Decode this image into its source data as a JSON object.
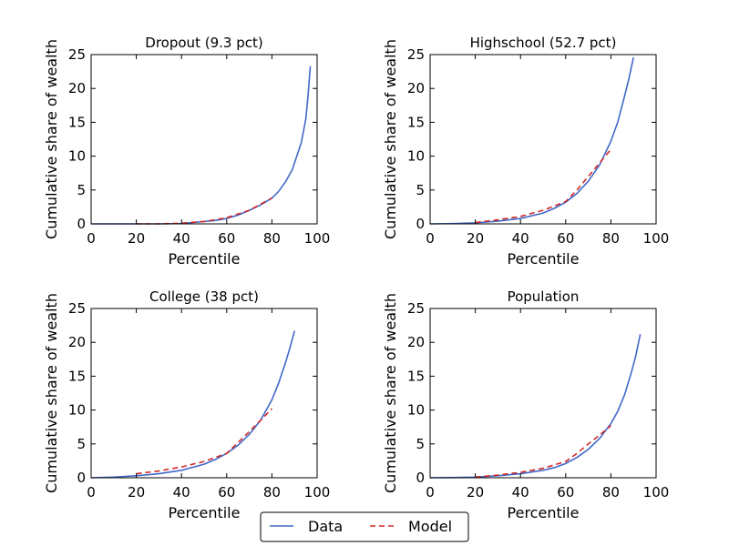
{
  "chart_data": [
    {
      "type": "line",
      "title": "Dropout (9.3 pct)",
      "xlabel": "Percentile",
      "ylabel": "Cumulative share of wealth",
      "xlim": [
        0,
        100
      ],
      "ylim": [
        0,
        25
      ],
      "xticks": [
        "0",
        "20",
        "40",
        "60",
        "80",
        "100"
      ],
      "yticks": [
        "0",
        "5",
        "10",
        "15",
        "20",
        "25"
      ],
      "series": [
        {
          "name": "Data",
          "color": "#4169C8",
          "style": "solid",
          "x": [
            0,
            10,
            20,
            30,
            40,
            45,
            50,
            55,
            60,
            65,
            70,
            75,
            80,
            83,
            86,
            89,
            91,
            93,
            95,
            96,
            97
          ],
          "y": [
            0,
            0,
            0,
            0,
            0.05,
            0.2,
            0.35,
            0.5,
            0.8,
            1.3,
            2.0,
            2.8,
            3.8,
            4.8,
            6.2,
            8.0,
            10.0,
            12.0,
            15.5,
            19.0,
            23.3
          ]
        },
        {
          "name": "Model",
          "color": "#D02828",
          "style": "dashed",
          "x": [
            20,
            30,
            40,
            50,
            60,
            70,
            80
          ],
          "y": [
            0,
            0,
            0.1,
            0.35,
            0.9,
            2.0,
            3.8
          ]
        }
      ]
    },
    {
      "type": "line",
      "title": "Highschool (52.7 pct)",
      "xlabel": "Percentile",
      "ylabel": "Cumulative share of wealth",
      "xlim": [
        0,
        100
      ],
      "ylim": [
        0,
        25
      ],
      "xticks": [
        "0",
        "20",
        "40",
        "60",
        "80",
        "100"
      ],
      "yticks": [
        "0",
        "5",
        "10",
        "15",
        "20",
        "25"
      ],
      "series": [
        {
          "name": "Data",
          "color": "#4169C8",
          "style": "solid",
          "x": [
            0,
            10,
            20,
            30,
            40,
            50,
            55,
            60,
            65,
            70,
            75,
            80,
            83,
            86,
            88,
            90
          ],
          "y": [
            0,
            0.05,
            0.15,
            0.4,
            0.8,
            1.6,
            2.3,
            3.2,
            4.5,
            6.3,
            8.7,
            12.2,
            15.0,
            18.8,
            21.5,
            24.6
          ]
        },
        {
          "name": "Model",
          "color": "#D02828",
          "style": "dashed",
          "x": [
            20,
            30,
            40,
            50,
            60,
            65,
            70,
            75,
            80
          ],
          "y": [
            0.2,
            0.6,
            1.1,
            2.0,
            3.3,
            5.0,
            7.0,
            9.0,
            11.0
          ]
        }
      ]
    },
    {
      "type": "line",
      "title": "College (38 pct)",
      "xlabel": "Percentile",
      "ylabel": "Cumulative share of wealth",
      "xlim": [
        0,
        100
      ],
      "ylim": [
        0,
        25
      ],
      "xticks": [
        "0",
        "20",
        "40",
        "60",
        "80",
        "100"
      ],
      "yticks": [
        "0",
        "5",
        "10",
        "15",
        "20",
        "25"
      ],
      "series": [
        {
          "name": "Data",
          "color": "#4169C8",
          "style": "solid",
          "x": [
            0,
            10,
            20,
            30,
            40,
            50,
            55,
            60,
            65,
            70,
            75,
            80,
            83,
            86,
            88,
            90
          ],
          "y": [
            0,
            0.1,
            0.3,
            0.6,
            1.1,
            2.0,
            2.7,
            3.6,
            4.8,
            6.4,
            8.5,
            11.5,
            14.0,
            17.0,
            19.2,
            21.7
          ]
        },
        {
          "name": "Model",
          "color": "#D02828",
          "style": "dashed",
          "x": [
            20,
            30,
            40,
            50,
            60,
            65,
            70,
            75,
            80
          ],
          "y": [
            0.6,
            1.0,
            1.6,
            2.4,
            3.6,
            5.2,
            6.8,
            8.5,
            10.2
          ]
        }
      ]
    },
    {
      "type": "line",
      "title": "Population",
      "xlabel": "Percentile",
      "ylabel": "Cumulative share of wealth",
      "xlim": [
        0,
        100
      ],
      "ylim": [
        0,
        25
      ],
      "xticks": [
        "0",
        "20",
        "40",
        "60",
        "80",
        "100"
      ],
      "yticks": [
        "0",
        "5",
        "10",
        "15",
        "20",
        "25"
      ],
      "series": [
        {
          "name": "Data",
          "color": "#4169C8",
          "style": "solid",
          "x": [
            0,
            10,
            20,
            30,
            40,
            50,
            55,
            60,
            65,
            70,
            75,
            80,
            83,
            86,
            89,
            91,
            93
          ],
          "y": [
            0,
            0.02,
            0.1,
            0.3,
            0.6,
            1.1,
            1.5,
            2.1,
            3.0,
            4.2,
            5.8,
            8.0,
            9.8,
            12.2,
            15.5,
            18.0,
            21.2
          ]
        },
        {
          "name": "Model",
          "color": "#D02828",
          "style": "dashed",
          "x": [
            20,
            30,
            40,
            50,
            60,
            65,
            70,
            75,
            80
          ],
          "y": [
            0.1,
            0.4,
            0.8,
            1.4,
            2.4,
            3.6,
            5.0,
            6.3,
            7.7
          ]
        }
      ]
    }
  ],
  "legend": {
    "placement": "bottom-center",
    "entries": [
      {
        "label": "Data",
        "color": "#4169C8",
        "style": "solid"
      },
      {
        "label": "Model",
        "color": "#D02828",
        "style": "dashed"
      }
    ]
  }
}
